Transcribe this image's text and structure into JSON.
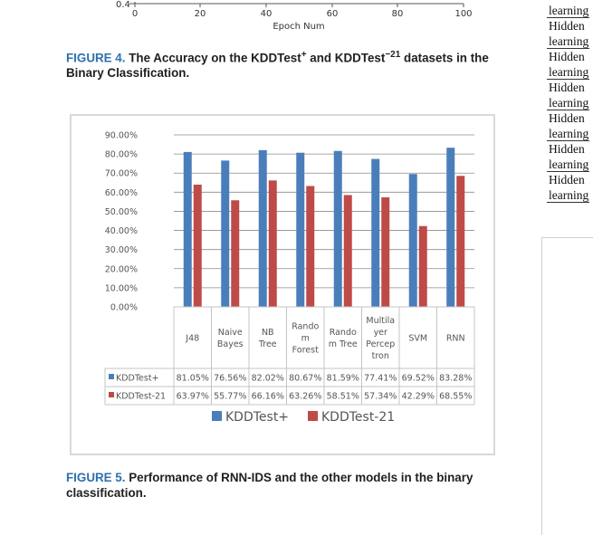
{
  "top_axis": {
    "y_tick": "0.4",
    "x_ticks": [
      "0",
      "20",
      "40",
      "60",
      "80",
      "100"
    ],
    "x_label": "Epoch Num"
  },
  "captions": {
    "fig4": {
      "label": "FIGURE 4.",
      "text_a": " The Accuracy on the KDDTest",
      "sup_a": "+",
      "text_b": " and KDDTest",
      "sup_b": "−21",
      "text_c": " datasets in the Binary Classification."
    },
    "fig5": {
      "label": "FIGURE 5.",
      "text": " Performance of RNN-IDS and the other models in the binary classification."
    }
  },
  "chart_data": {
    "type": "bar",
    "categories": [
      "J48",
      "Naive Bayes",
      "NB Tree",
      "Random Forest",
      "Random Tree",
      "Multilayer Perceptron",
      "SVM",
      "RNN"
    ],
    "category_lines": [
      [
        "J48"
      ],
      [
        "Naive",
        "Bayes"
      ],
      [
        "NB",
        "Tree"
      ],
      [
        "Rando",
        "m",
        "Forest"
      ],
      [
        "Rando",
        "m Tree"
      ],
      [
        "Multila",
        "yer",
        "Percep",
        "tron"
      ],
      [
        "SVM"
      ],
      [
        "RNN"
      ]
    ],
    "series": [
      {
        "name": "KDDTest+",
        "color": "#4a7ebb",
        "values": [
          81.05,
          76.56,
          82.02,
          80.67,
          81.59,
          77.41,
          69.52,
          83.28
        ],
        "labels": [
          "81.05%",
          "76.56%",
          "82.02%",
          "80.67%",
          "81.59%",
          "77.41%",
          "69.52%",
          "83.28%"
        ]
      },
      {
        "name": "KDDTest-21",
        "color": "#be4b48",
        "values": [
          63.97,
          55.77,
          66.16,
          63.26,
          58.51,
          57.34,
          42.29,
          68.55
        ],
        "labels": [
          "63.97%",
          "55.77%",
          "66.16%",
          "63.26%",
          "58.51%",
          "57.34%",
          "42.29%",
          "68.55%"
        ]
      }
    ],
    "yticks": [
      "0.00%",
      "10.00%",
      "20.00%",
      "30.00%",
      "40.00%",
      "50.00%",
      "60.00%",
      "70.00%",
      "80.00%",
      "90.00%"
    ],
    "ylim": [
      0,
      90
    ],
    "grid": true,
    "legend": "bottom",
    "data_table": true
  },
  "right_column": {
    "words": [
      "learning",
      "Hidden",
      "learning",
      "Hidden",
      "learning",
      "Hidden",
      "learning",
      "Hidden",
      "learning",
      "Hidden",
      "learning",
      "Hidden",
      "learning"
    ]
  }
}
